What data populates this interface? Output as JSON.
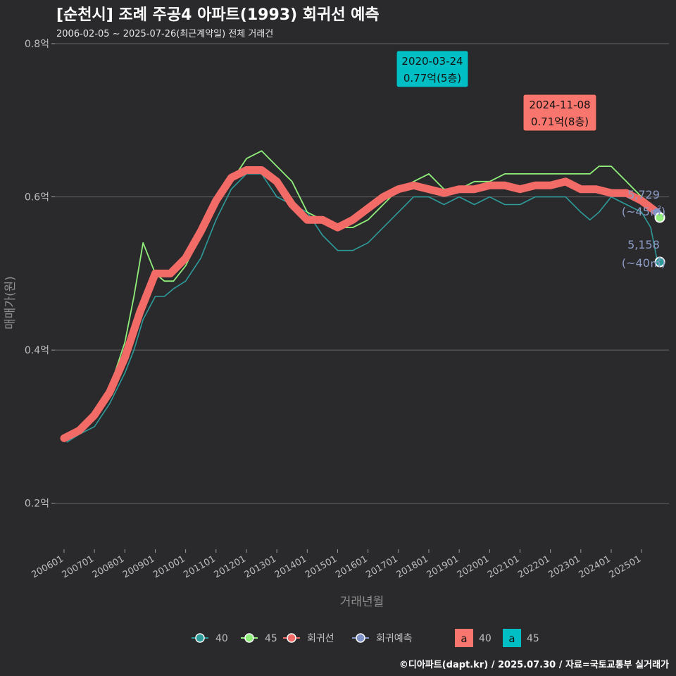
{
  "header": {
    "title": "[순천시] 조례 주공4 아파트(1993) 회귀선 예측",
    "subtitle": "2006-02-05 ~ 2025-07-26(최근계약일) 전체 거래건"
  },
  "footer": {
    "credit": "©디아파트(dapt.kr) / 2025.07.30 / 자료=국토교통부 실거래가"
  },
  "colors": {
    "bg": "#2a2a2c",
    "grid": "#5a5a5a",
    "series_40": "#2e9b9b",
    "series_45": "#90ee7a",
    "regression": "#f26b66",
    "forecast": "#7f93c8",
    "callout_red": "#f8766d",
    "callout_teal": "#00bfc4"
  },
  "chart_data": {
    "type": "line",
    "title": "[순천시] 조례 주공4 아파트(1993) 회귀선 예측",
    "subtitle": "2006-02-05 ~ 2025-07-26(최근계약일) 전체 거래건",
    "xlabel": "거래년월",
    "ylabel": "매매가(원)",
    "xlim": [
      2005.7,
      2025.9
    ],
    "ylim": [
      0.14,
      0.8
    ],
    "y_ticks": [
      0.2,
      0.4,
      0.6,
      0.8
    ],
    "y_tick_labels": [
      "0.2억",
      "0.4억",
      "0.6억",
      "0.8억"
    ],
    "x_ticks": [
      2006,
      2007,
      2008,
      2009,
      2010,
      2011,
      2012,
      2013,
      2014,
      2015,
      2016,
      2017,
      2018,
      2019,
      2020,
      2021,
      2022,
      2023,
      2024,
      2025
    ],
    "x_tick_labels": [
      "200601",
      "200701",
      "200801",
      "200901",
      "201001",
      "201101",
      "201201",
      "201301",
      "201401",
      "201501",
      "201601",
      "201701",
      "201801",
      "201901",
      "202001",
      "202101",
      "202201",
      "202301",
      "202401",
      "202501"
    ],
    "grid": true,
    "legend_position": "bottom",
    "series": [
      {
        "name": "40",
        "x": [
          2006.1,
          2006.5,
          2007.0,
          2007.5,
          2008.0,
          2008.3,
          2008.6,
          2009.0,
          2009.3,
          2009.6,
          2010.0,
          2010.5,
          2011.0,
          2011.5,
          2012.0,
          2012.5,
          2013.0,
          2013.5,
          2014.0,
          2014.5,
          2015.0,
          2015.5,
          2016.0,
          2016.5,
          2017.0,
          2017.5,
          2018.0,
          2018.5,
          2019.0,
          2019.5,
          2020.0,
          2020.5,
          2021.0,
          2021.5,
          2022.0,
          2022.5,
          2023.0,
          2023.3,
          2023.6,
          2024.0,
          2024.5,
          2025.0,
          2025.3,
          2025.5
        ],
        "values": [
          0.28,
          0.29,
          0.3,
          0.33,
          0.37,
          0.4,
          0.44,
          0.47,
          0.47,
          0.48,
          0.49,
          0.52,
          0.57,
          0.61,
          0.63,
          0.63,
          0.6,
          0.59,
          0.58,
          0.55,
          0.53,
          0.53,
          0.54,
          0.56,
          0.58,
          0.6,
          0.6,
          0.59,
          0.6,
          0.59,
          0.6,
          0.59,
          0.59,
          0.6,
          0.6,
          0.6,
          0.58,
          0.57,
          0.58,
          0.6,
          0.59,
          0.58,
          0.56,
          0.52
        ]
      },
      {
        "name": "45",
        "x": [
          2006.1,
          2006.5,
          2007.0,
          2007.5,
          2008.0,
          2008.3,
          2008.6,
          2009.0,
          2009.3,
          2009.6,
          2010.0,
          2010.5,
          2011.0,
          2011.5,
          2012.0,
          2012.5,
          2013.0,
          2013.5,
          2014.0,
          2014.5,
          2015.0,
          2015.5,
          2016.0,
          2016.5,
          2017.0,
          2017.5,
          2018.0,
          2018.5,
          2019.0,
          2019.5,
          2020.0,
          2020.5,
          2021.0,
          2021.5,
          2022.0,
          2022.5,
          2023.0,
          2023.3,
          2023.6,
          2024.0,
          2024.5,
          2025.0,
          2025.3,
          2025.5
        ],
        "values": [
          0.29,
          0.3,
          0.31,
          0.35,
          0.41,
          0.47,
          0.54,
          0.5,
          0.49,
          0.49,
          0.51,
          0.55,
          0.59,
          0.62,
          0.65,
          0.66,
          0.64,
          0.62,
          0.58,
          0.57,
          0.56,
          0.56,
          0.57,
          0.59,
          0.61,
          0.62,
          0.63,
          0.61,
          0.61,
          0.62,
          0.62,
          0.63,
          0.63,
          0.63,
          0.63,
          0.63,
          0.63,
          0.63,
          0.64,
          0.64,
          0.62,
          0.6,
          0.59,
          0.57
        ]
      },
      {
        "name": "회귀선",
        "x": [
          2006.0,
          2006.5,
          2007.0,
          2007.5,
          2008.0,
          2008.5,
          2009.0,
          2009.5,
          2010.0,
          2010.5,
          2011.0,
          2011.5,
          2012.0,
          2012.5,
          2013.0,
          2013.5,
          2014.0,
          2014.5,
          2015.0,
          2015.5,
          2016.0,
          2016.5,
          2017.0,
          2017.5,
          2018.0,
          2018.5,
          2019.0,
          2019.5,
          2020.0,
          2020.5,
          2021.0,
          2021.5,
          2022.0,
          2022.5,
          2023.0,
          2023.5,
          2024.0,
          2024.5,
          2025.0,
          2025.5
        ],
        "values": [
          0.285,
          0.295,
          0.315,
          0.345,
          0.39,
          0.45,
          0.5,
          0.5,
          0.52,
          0.555,
          0.595,
          0.625,
          0.635,
          0.635,
          0.62,
          0.59,
          0.57,
          0.57,
          0.56,
          0.57,
          0.585,
          0.6,
          0.61,
          0.615,
          0.61,
          0.605,
          0.61,
          0.61,
          0.615,
          0.615,
          0.61,
          0.615,
          0.615,
          0.62,
          0.61,
          0.61,
          0.605,
          0.605,
          0.595,
          0.58
        ]
      },
      {
        "name": "회귀예측",
        "x": [
          2025.5,
          2025.6
        ],
        "values": [
          0.58,
          0.575
        ]
      }
    ],
    "end_points": [
      {
        "series": "45",
        "x": 2025.6,
        "y": 0.573,
        "label_top": "5,729",
        "label_bottom": "(~45㎡)"
      },
      {
        "series": "40",
        "x": 2025.6,
        "y": 0.515,
        "label_top": "5,158",
        "label_bottom": "(~40㎡)"
      }
    ],
    "annotations": [
      {
        "date": "2020-03-24",
        "value_text": "0.77억(5층)",
        "x": 2020.23,
        "y": 0.77,
        "color": "teal"
      },
      {
        "date": "2024-11-08",
        "value_text": "0.71억(8층)",
        "x": 2024.85,
        "y": 0.71,
        "color": "red"
      }
    ],
    "legend": {
      "items": [
        {
          "label": "40",
          "series": "40"
        },
        {
          "label": "45",
          "series": "45"
        },
        {
          "label": "회귀선",
          "series": "회귀선"
        },
        {
          "label": "회귀예측",
          "series": "회귀예측"
        }
      ],
      "fill_items": [
        {
          "glyph": "a",
          "label": "40",
          "color": "red"
        },
        {
          "glyph": "a",
          "label": "45",
          "color": "teal"
        }
      ]
    }
  }
}
